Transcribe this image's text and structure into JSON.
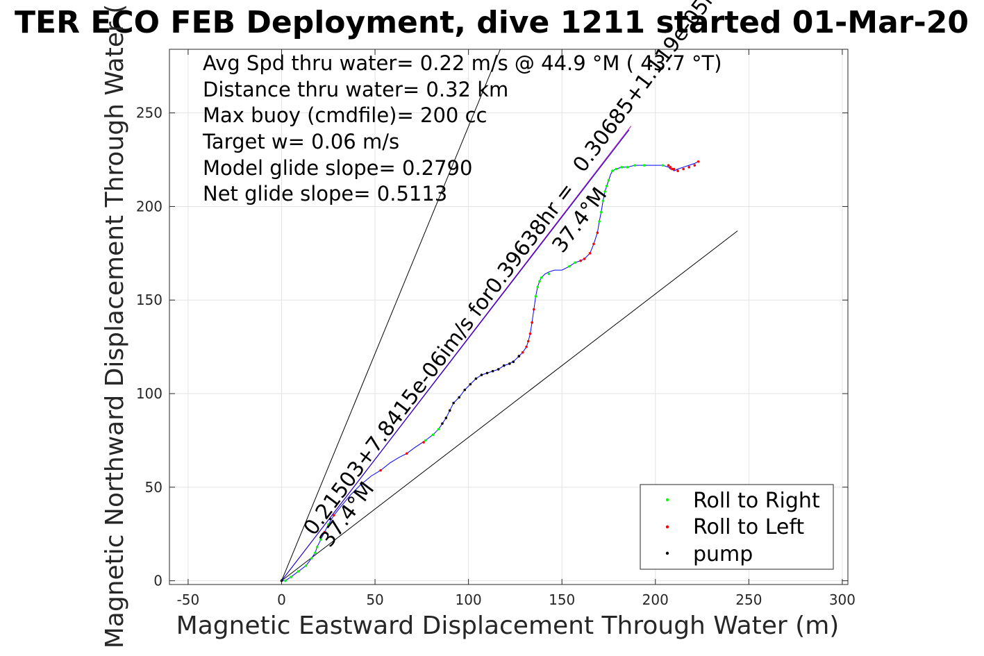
{
  "chart_data": {
    "type": "scatter",
    "title": "TER ECO FEB Deployment, dive 1211 started 01-Mar-20",
    "xlabel": "Magnetic Eastward Displacement Through Water (m)",
    "ylabel": "Magnetic Northward Displacement Through Water (",
    "xlim": [
      -60,
      303
    ],
    "ylim": [
      -2,
      284
    ],
    "xticks": [
      -50,
      0,
      50,
      100,
      150,
      200,
      250,
      300
    ],
    "yticks": [
      0,
      50,
      100,
      150,
      200,
      250
    ],
    "grid": true,
    "annotations": [
      "Avg Spd thru water=  0.22 m/s @  44.9 °M ( 43.7 °T)",
      "Distance thru water=  0.32 km",
      "Max buoy (cmdfile)= 200 cc",
      "Target w= 0.06 m/s",
      "Model glide slope= 0.2790",
      "Net glide slope= 0.5113"
    ],
    "rotated_labels": {
      "upper_fit": "0.30685+1.119e-05i",
      "upper_heading": "37.4°M",
      "lower_fit": "0.21503+7.8415e-06im/s for0.39638hr =",
      "lower_heading": "37.4°M"
    },
    "reference_lines": [
      {
        "name": "steep",
        "x": [
          0,
          117
        ],
        "y": [
          0,
          284
        ],
        "color": "#000000"
      },
      {
        "name": "shallow",
        "x": [
          0,
          244
        ],
        "y": [
          0,
          187
        ],
        "color": "#000000"
      },
      {
        "name": "magenta-fit",
        "x": [
          0,
          187
        ],
        "y": [
          0,
          243
        ],
        "color": "#c000c0"
      },
      {
        "name": "blue-fit",
        "x": [
          0,
          186
        ],
        "y": [
          0,
          241
        ],
        "color": "#0000c8"
      }
    ],
    "track": {
      "color": "#0000ff",
      "x": [
        0,
        2,
        5,
        9,
        13,
        16,
        18,
        19,
        21,
        23,
        25,
        28,
        32,
        37,
        42,
        48,
        53,
        58,
        63,
        67,
        71,
        74,
        77,
        81,
        84,
        86,
        88,
        90,
        92,
        95,
        98,
        101,
        104,
        107,
        110,
        113,
        116,
        119,
        122,
        125,
        127,
        129,
        131,
        132,
        133,
        134,
        135,
        136,
        137,
        138,
        139,
        141,
        143,
        146,
        150,
        154,
        157,
        160,
        162,
        165,
        167,
        169,
        170,
        171,
        172,
        173,
        174,
        175,
        176,
        177,
        179,
        182,
        185,
        189,
        194,
        199,
        204,
        207,
        208,
        209,
        210,
        212,
        215,
        218,
        221,
        223
      ],
      "y": [
        0,
        0,
        2,
        5,
        8,
        12,
        15,
        18,
        22,
        26,
        30,
        35,
        40,
        46,
        51,
        56,
        59,
        63,
        66,
        68,
        71,
        73,
        75,
        78,
        81,
        84,
        87,
        91,
        95,
        98,
        102,
        105,
        108,
        110,
        111,
        112,
        113,
        115,
        116,
        118,
        120,
        122,
        125,
        128,
        132,
        138,
        145,
        152,
        157,
        160,
        162,
        164,
        165,
        166,
        166,
        168,
        170,
        171,
        172,
        175,
        180,
        186,
        192,
        197,
        203,
        208,
        211,
        214,
        217,
        219,
        220,
        221,
        221,
        222,
        222,
        222,
        222,
        221,
        220,
        220,
        219,
        220,
        221,
        222,
        223,
        224
      ]
    },
    "series": [
      {
        "name": "Roll to Right",
        "color": "#00ff00",
        "x": [
          2,
          5,
          9,
          13,
          16,
          18,
          19,
          21,
          25,
          28,
          77,
          81,
          84,
          136,
          137,
          138,
          139,
          143,
          154,
          157,
          170,
          171,
          172,
          173,
          174,
          175,
          177,
          179,
          182,
          185,
          189,
          194,
          204
        ],
        "y": [
          0,
          2,
          5,
          8,
          12,
          15,
          18,
          22,
          30,
          35,
          75,
          78,
          81,
          152,
          157,
          160,
          162,
          164,
          168,
          170,
          192,
          197,
          203,
          208,
          211,
          214,
          219,
          220,
          221,
          221,
          222,
          222,
          222
        ]
      },
      {
        "name": "Roll to Left",
        "color": "#ff0000",
        "x": [
          23,
          28,
          53,
          67,
          76,
          127,
          129,
          131,
          132,
          133,
          134,
          135,
          160,
          162,
          165,
          167,
          169,
          207,
          208,
          209,
          210,
          212,
          215,
          218,
          221,
          223
        ],
        "y": [
          26,
          35,
          59,
          68,
          74,
          120,
          122,
          125,
          128,
          132,
          138,
          145,
          171,
          172,
          175,
          180,
          186,
          222,
          221,
          220,
          220,
          219,
          220,
          221,
          222,
          224
        ]
      },
      {
        "name": "pump",
        "color": "#000000",
        "x": [
          0,
          26,
          86,
          88,
          90,
          92,
          95,
          98,
          101,
          104,
          107,
          110,
          113,
          116,
          119,
          122,
          124,
          127
        ],
        "y": [
          0,
          33,
          84,
          87,
          91,
          95,
          98,
          102,
          105,
          108,
          110,
          111,
          112,
          113,
          115,
          116,
          117,
          120
        ]
      }
    ]
  }
}
